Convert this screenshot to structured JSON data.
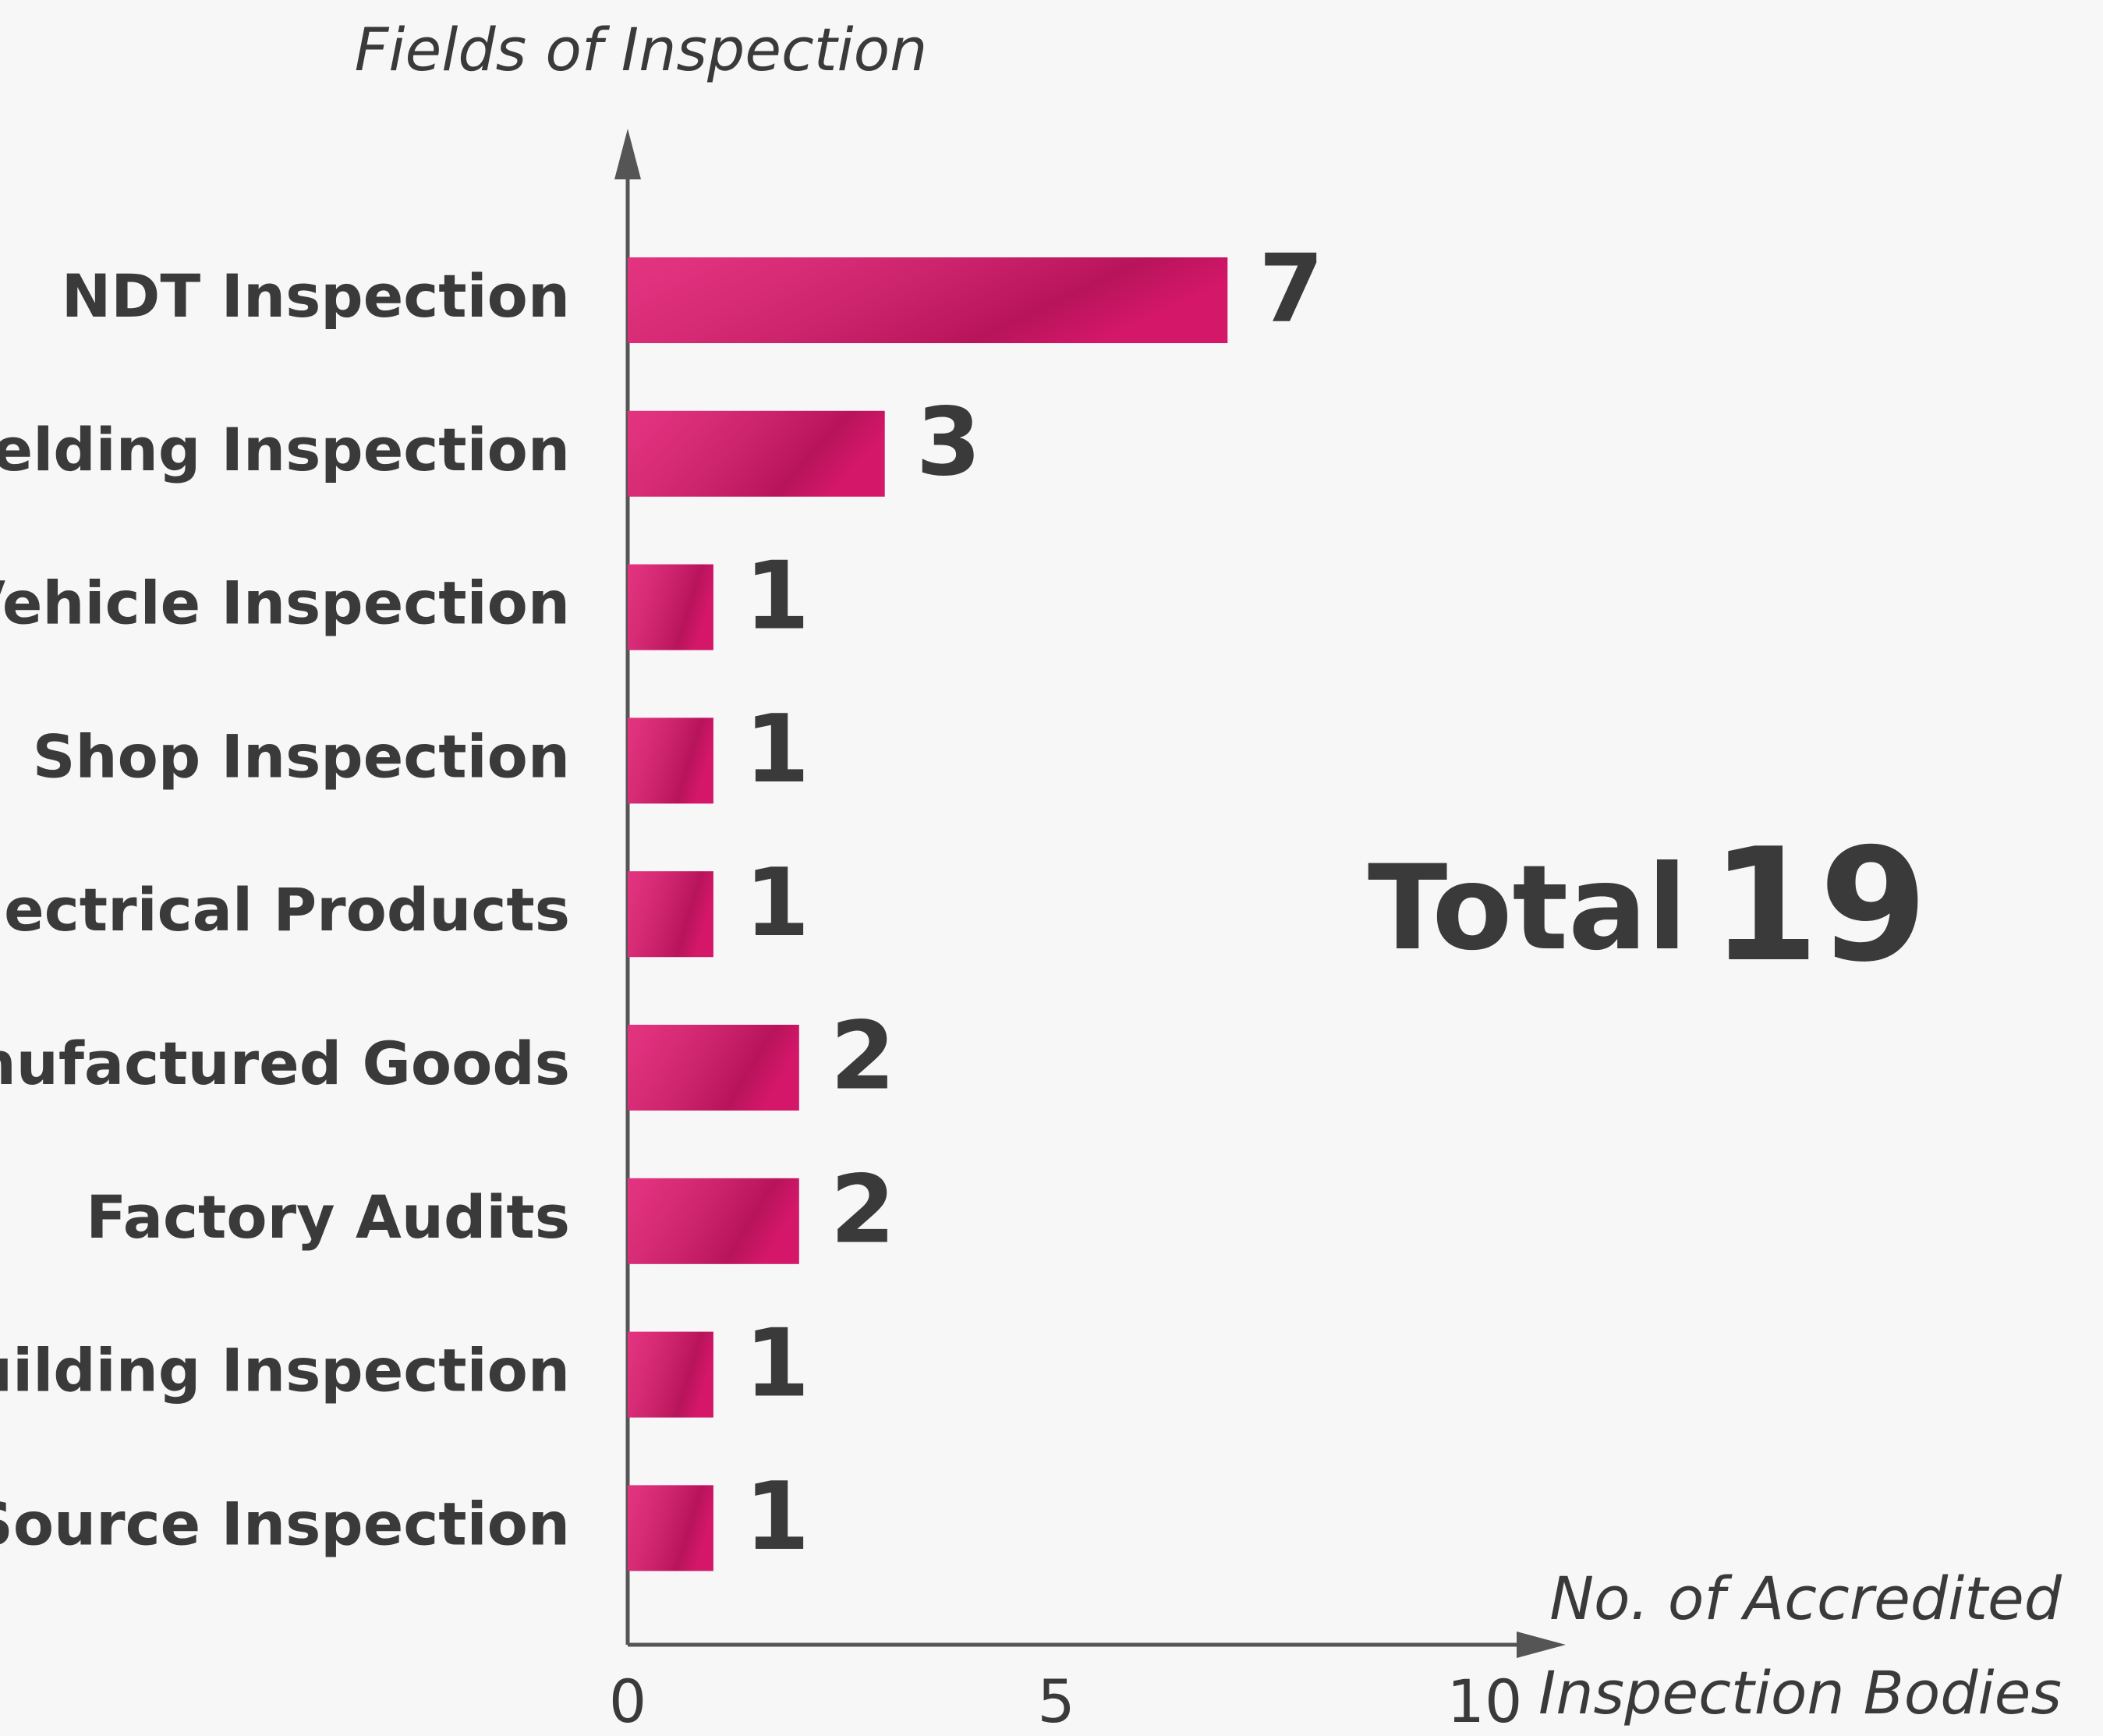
{
  "chart_data": {
    "type": "bar",
    "orientation": "horizontal",
    "y_label": "Fields of Inspection",
    "x_label": [
      "No. of Accredited",
      "Inspection Bodies"
    ],
    "categories": [
      "NDT Inspection",
      "Welding Inspection",
      "Vehicle Inspection",
      "Shop Inspection",
      "Electrical Products",
      "Manufactured Goods",
      "Factory Audits",
      "Building Inspection",
      "Source Inspection"
    ],
    "values": [
      7,
      3,
      1,
      1,
      1,
      2,
      2,
      1,
      1
    ],
    "color": "#e0186f",
    "xlim": [
      0,
      10
    ],
    "xticks": [
      0,
      5,
      10
    ],
    "grid": false,
    "total_label": "Total",
    "total": 19
  }
}
